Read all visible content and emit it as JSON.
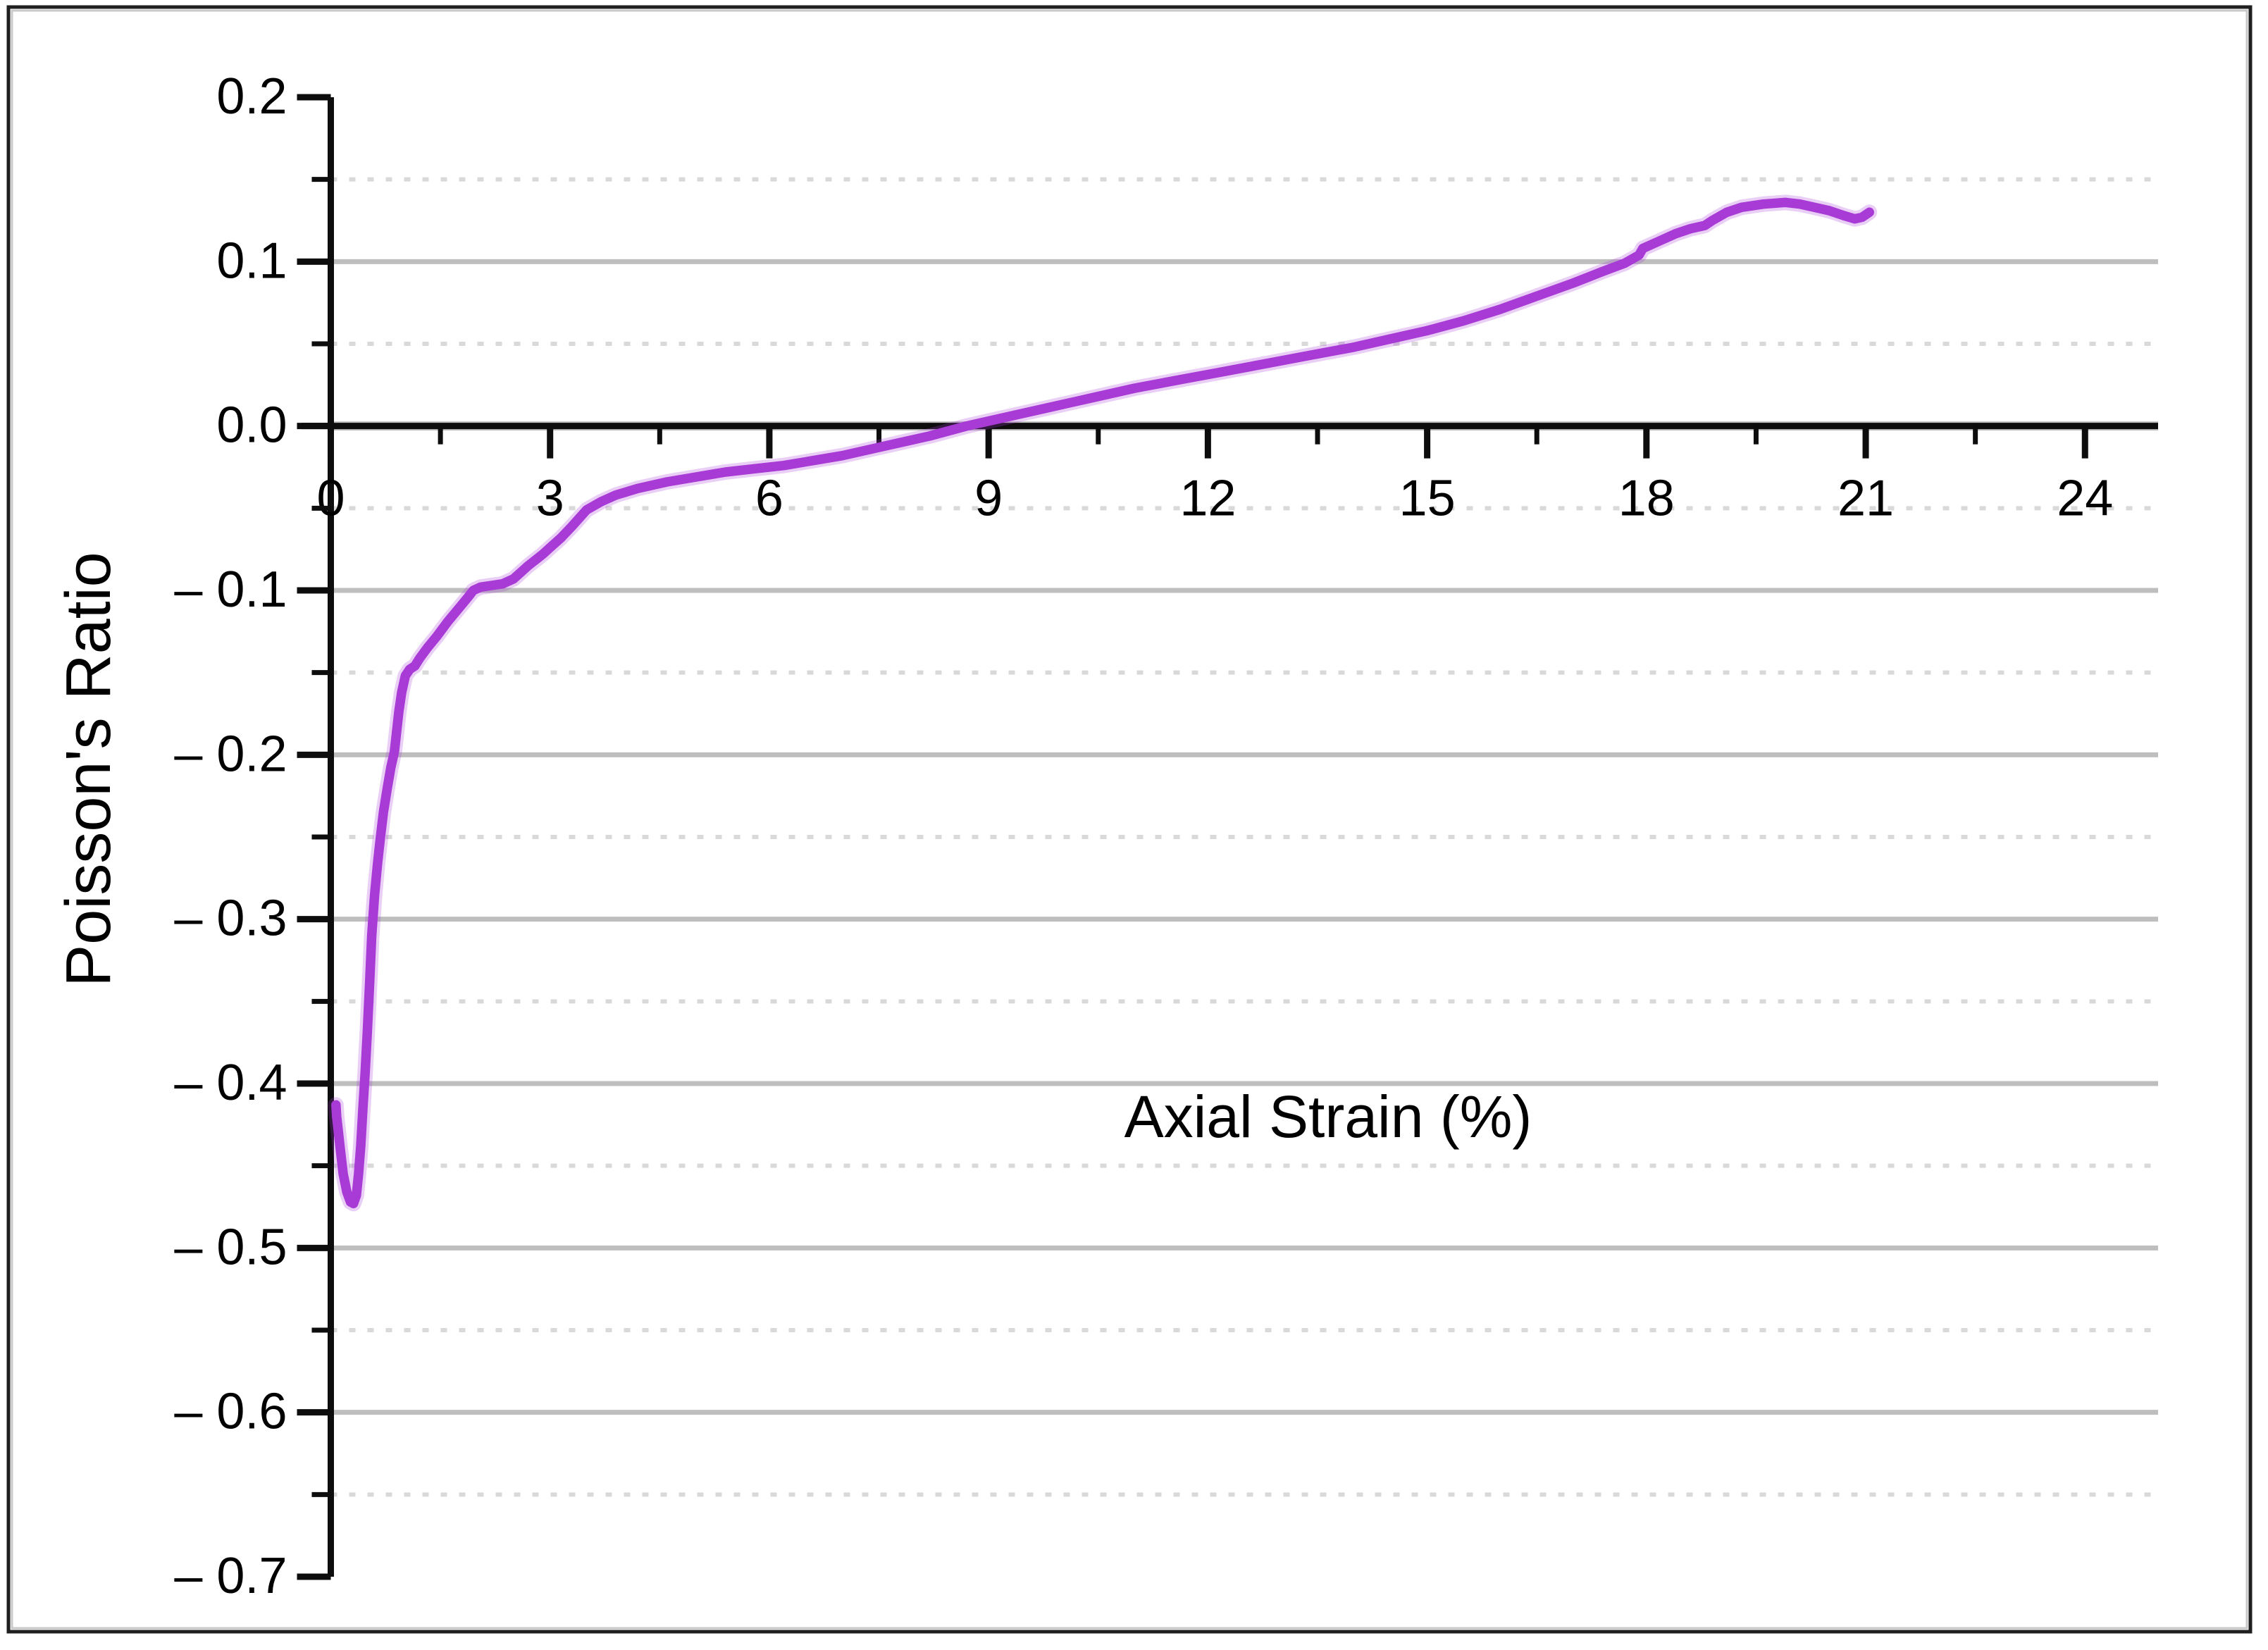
{
  "figure": {
    "background": "#ffffff",
    "border_color": "#1f1f1f",
    "border_inner_color": "#c8c8c8"
  },
  "chart_data": {
    "type": "line",
    "title": "",
    "xlabel": "Axial Strain (%)",
    "ylabel": "Poisson's Ratio",
    "xlim": [
      -0.4,
      25.0
    ],
    "ylim": [
      -0.7,
      0.2
    ],
    "grid": {
      "major": "solid",
      "minor": "dashed",
      "major_color": "#bebebe",
      "minor_color": "#d9d9d9"
    },
    "legend_position": "none",
    "axis_color": "#0d0d0d",
    "x_major_ticks": [
      0,
      3,
      6,
      9,
      12,
      15,
      18,
      21,
      24
    ],
    "x_tick_labels": [
      "0",
      "3",
      "6",
      "9",
      "12",
      "15",
      "18",
      "21",
      "24"
    ],
    "x_minor_ticks": [
      1.5,
      4.5,
      7.5,
      10.5,
      13.5,
      16.5,
      19.5,
      22.5
    ],
    "y_major_ticks": [
      0.2,
      0.1,
      0.0,
      -0.1,
      -0.2,
      -0.3,
      -0.4,
      -0.5,
      -0.6,
      -0.7
    ],
    "y_tick_labels": [
      "0.2",
      "0.1",
      "0.0",
      "– 0.1",
      "– 0.2",
      "– 0.3",
      "– 0.4",
      "– 0.5",
      "– 0.6",
      "– 0.7"
    ],
    "y_minor_ticks": [
      0.15,
      0.05,
      -0.05,
      -0.15,
      -0.25,
      -0.35,
      -0.45,
      -0.55,
      -0.65
    ],
    "series": [
      {
        "name": "poissons-ratio-vs-axial-strain",
        "color": "#a83ad6",
        "halo_color": "#a83ad6",
        "points": [
          [
            0.07,
            -0.413
          ],
          [
            0.08,
            -0.42
          ],
          [
            0.1,
            -0.428
          ],
          [
            0.13,
            -0.44
          ],
          [
            0.17,
            -0.455
          ],
          [
            0.22,
            -0.466
          ],
          [
            0.27,
            -0.472
          ],
          [
            0.31,
            -0.473
          ],
          [
            0.35,
            -0.468
          ],
          [
            0.38,
            -0.455
          ],
          [
            0.41,
            -0.438
          ],
          [
            0.44,
            -0.415
          ],
          [
            0.47,
            -0.393
          ],
          [
            0.5,
            -0.368
          ],
          [
            0.53,
            -0.34
          ],
          [
            0.56,
            -0.31
          ],
          [
            0.6,
            -0.285
          ],
          [
            0.64,
            -0.266
          ],
          [
            0.68,
            -0.25
          ],
          [
            0.72,
            -0.235
          ],
          [
            0.77,
            -0.221
          ],
          [
            0.82,
            -0.208
          ],
          [
            0.87,
            -0.198
          ],
          [
            0.9,
            -0.186
          ],
          [
            0.93,
            -0.174
          ],
          [
            0.97,
            -0.162
          ],
          [
            1.02,
            -0.152
          ],
          [
            1.08,
            -0.148
          ],
          [
            1.15,
            -0.146
          ],
          [
            1.22,
            -0.141
          ],
          [
            1.32,
            -0.135
          ],
          [
            1.45,
            -0.128
          ],
          [
            1.6,
            -0.119
          ],
          [
            1.75,
            -0.111
          ],
          [
            1.88,
            -0.104
          ],
          [
            1.95,
            -0.1
          ],
          [
            2.05,
            -0.098
          ],
          [
            2.2,
            -0.097
          ],
          [
            2.35,
            -0.096
          ],
          [
            2.5,
            -0.093
          ],
          [
            2.7,
            -0.085
          ],
          [
            2.9,
            -0.078
          ],
          [
            3.0,
            -0.074
          ],
          [
            3.15,
            -0.068
          ],
          [
            3.3,
            -0.061
          ],
          [
            3.5,
            -0.051
          ],
          [
            3.7,
            -0.046
          ],
          [
            3.9,
            -0.042
          ],
          [
            4.2,
            -0.038
          ],
          [
            4.6,
            -0.034
          ],
          [
            5.0,
            -0.031
          ],
          [
            5.4,
            -0.028
          ],
          [
            5.8,
            -0.026
          ],
          [
            6.2,
            -0.024
          ],
          [
            6.6,
            -0.021
          ],
          [
            7.0,
            -0.018
          ],
          [
            7.4,
            -0.014
          ],
          [
            7.8,
            -0.01
          ],
          [
            8.2,
            -0.006
          ],
          [
            8.7,
            0.0
          ],
          [
            9.2,
            0.005
          ],
          [
            9.8,
            0.011
          ],
          [
            10.4,
            0.017
          ],
          [
            11.0,
            0.023
          ],
          [
            11.6,
            0.028
          ],
          [
            12.2,
            0.033
          ],
          [
            12.8,
            0.038
          ],
          [
            13.4,
            0.043
          ],
          [
            14.0,
            0.048
          ],
          [
            14.5,
            0.053
          ],
          [
            15.0,
            0.058
          ],
          [
            15.5,
            0.064
          ],
          [
            16.0,
            0.071
          ],
          [
            16.5,
            0.079
          ],
          [
            17.0,
            0.087
          ],
          [
            17.4,
            0.094
          ],
          [
            17.7,
            0.099
          ],
          [
            17.9,
            0.104
          ],
          [
            17.95,
            0.108
          ],
          [
            18.05,
            0.11
          ],
          [
            18.2,
            0.113
          ],
          [
            18.4,
            0.117
          ],
          [
            18.6,
            0.12
          ],
          [
            18.8,
            0.122
          ],
          [
            18.9,
            0.125
          ],
          [
            19.1,
            0.13
          ],
          [
            19.3,
            0.133
          ],
          [
            19.6,
            0.135
          ],
          [
            19.9,
            0.136
          ],
          [
            20.1,
            0.135
          ],
          [
            20.3,
            0.133
          ],
          [
            20.5,
            0.131
          ],
          [
            20.7,
            0.128
          ],
          [
            20.85,
            0.126
          ],
          [
            20.95,
            0.127
          ],
          [
            21.05,
            0.13
          ]
        ]
      }
    ]
  }
}
